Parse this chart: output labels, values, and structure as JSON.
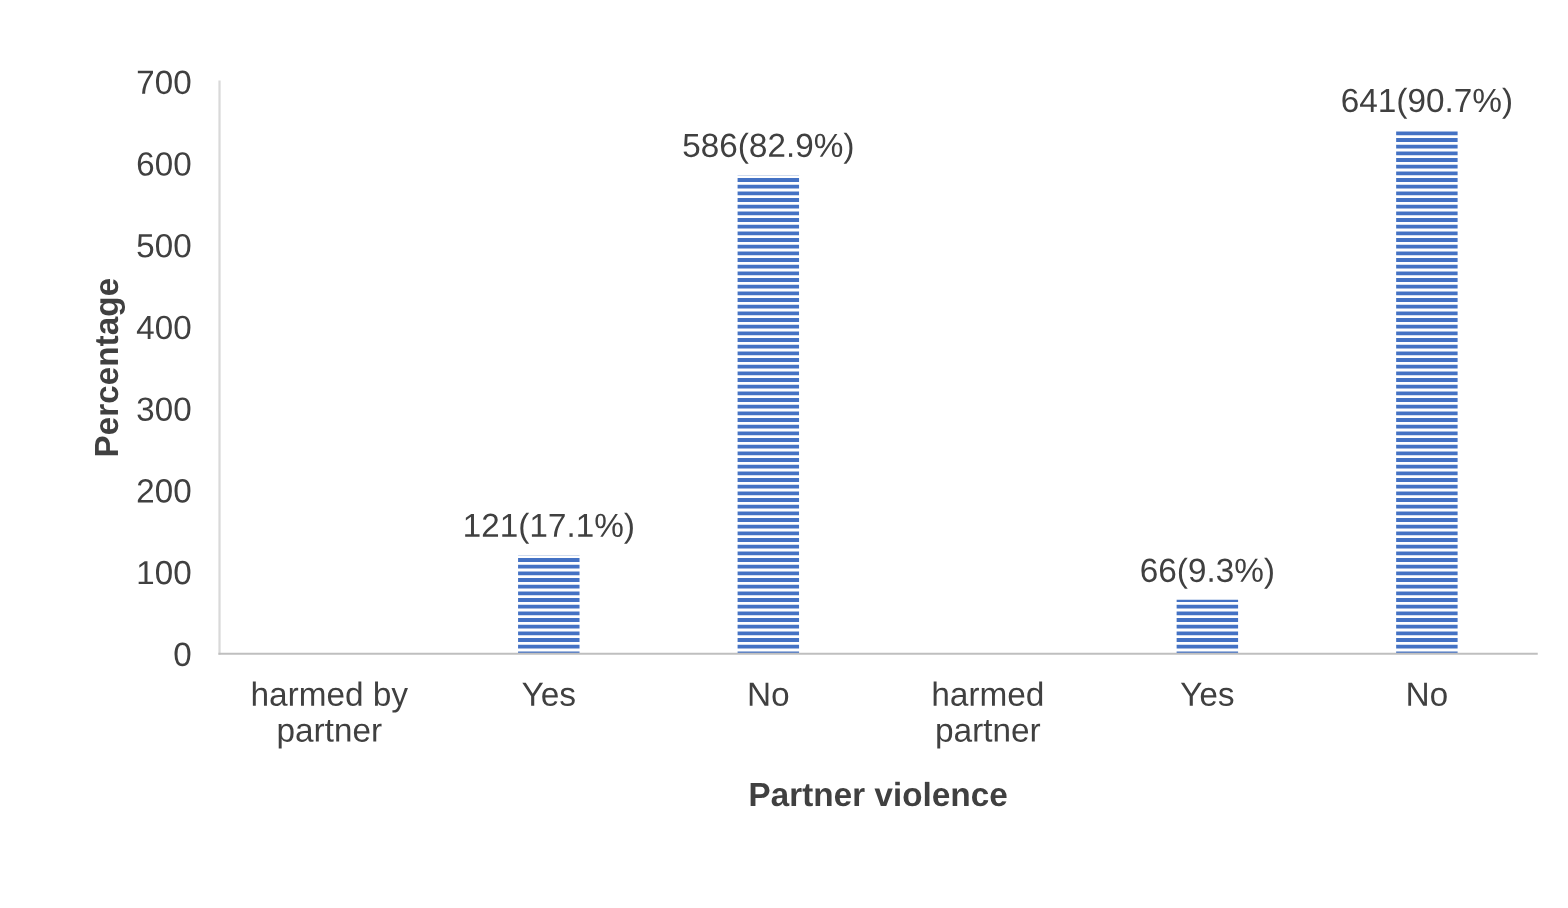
{
  "chart_data": {
    "type": "bar",
    "xlabel": "Partner violence",
    "ylabel": "Percentage",
    "categories": [
      "harmed by\npartner",
      "Yes",
      "No",
      "harmed\npartner",
      "Yes",
      "No"
    ],
    "values": [
      null,
      121,
      586,
      null,
      66,
      641
    ],
    "value_labels": [
      null,
      "121(17.1%)",
      "586(82.9%)",
      null,
      "66(9.3%)",
      "641(90.7%)"
    ],
    "color": "#4472c4",
    "ylim": [
      0,
      700
    ],
    "yticks": [
      0,
      100,
      200,
      300,
      400,
      500,
      600,
      700
    ],
    "grid": false,
    "legend": false
  }
}
